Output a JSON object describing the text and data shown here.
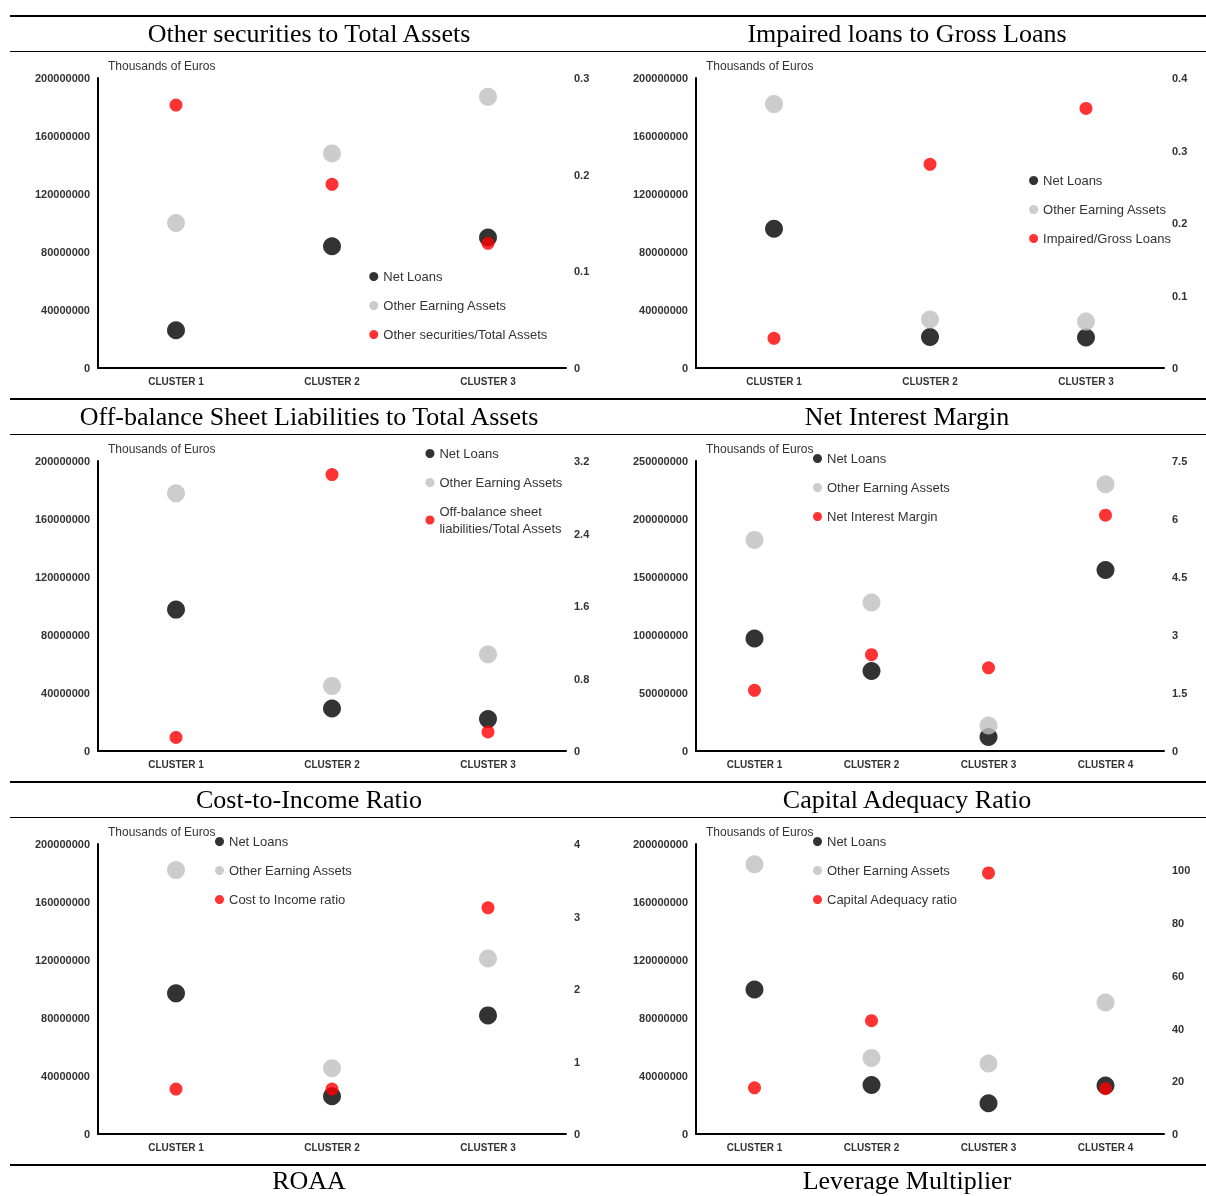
{
  "chart_data": [
    {
      "type": "scatter",
      "title": "Other securities to Total Assets",
      "ylabel": "Thousands of Euros",
      "categories": [
        "CLUSTER 1",
        "CLUSTER 2",
        "CLUSTER 3"
      ],
      "ylim": [
        0,
        200000000
      ],
      "yticks": [
        0,
        40000000,
        80000000,
        120000000,
        160000000,
        200000000
      ],
      "y2lim": [
        0,
        0.3
      ],
      "y2ticks": [
        0,
        0.1,
        0.2,
        0.3
      ],
      "grid": false,
      "legend": "bottom right",
      "marker": "circle",
      "series": [
        {
          "name": "Net Loans",
          "color": "#000000",
          "values": [
            26000000,
            84000000,
            90000000
          ]
        },
        {
          "name": "Other Earning Assets",
          "color": "#bfbfbf",
          "values": [
            100000000,
            148000000,
            187000000
          ]
        },
        {
          "name": "Other securities/Total Assets",
          "color": "#ff0000",
          "axis": "y2",
          "values": [
            0.272,
            0.19,
            0.129
          ]
        }
      ]
    },
    {
      "type": "scatter",
      "title": "Impaired loans to Gross Loans",
      "ylabel": "Thousands of Euros",
      "categories": [
        "CLUSTER 1",
        "CLUSTER 2",
        "CLUSTER 3"
      ],
      "ylim": [
        0,
        200000000
      ],
      "yticks": [
        0,
        40000000,
        80000000,
        120000000,
        160000000,
        200000000
      ],
      "y2lim": [
        0,
        0.4
      ],
      "y2ticks": [
        0,
        0.1,
        0.2,
        0.3,
        0.4
      ],
      "grid": false,
      "legend": "right",
      "marker": "circle",
      "series": [
        {
          "name": "Net Loans",
          "color": "#000000",
          "values": [
            96000000,
            21400000,
            21000000
          ]
        },
        {
          "name": "Other Earning Assets",
          "color": "#bfbfbf",
          "values": [
            182000000,
            33500000,
            32000000
          ]
        },
        {
          "name": "Impaired/Gross Loans",
          "color": "#ff0000",
          "axis": "y2",
          "values": [
            0.041,
            0.281,
            0.358
          ]
        }
      ]
    },
    {
      "type": "scatter",
      "title": "Off-balance Sheet Liabilities to Total Assets",
      "ylabel": "Thousands of Euros",
      "categories": [
        "CLUSTER 1",
        "CLUSTER 2",
        "CLUSTER 3"
      ],
      "ylim": [
        0,
        200000000
      ],
      "yticks": [
        0,
        40000000,
        80000000,
        120000000,
        160000000,
        200000000
      ],
      "y2lim": [
        0,
        3.2
      ],
      "y2ticks": [
        0,
        0.8,
        1.6,
        2.4,
        3.2
      ],
      "grid": false,
      "legend": "top right",
      "marker": "circle",
      "series": [
        {
          "name": "Net Loans",
          "color": "#000000",
          "values": [
            97500000,
            29300000,
            22000000
          ]
        },
        {
          "name": "Other Earning Assets",
          "color": "#bfbfbf",
          "values": [
            177700000,
            44900000,
            66700000
          ]
        },
        {
          "name": "Off-balance sheet\nliabilities/Total Assets",
          "color": "#ff0000",
          "axis": "y2",
          "values": [
            0.15,
            3.05,
            0.21
          ]
        }
      ]
    },
    {
      "type": "scatter",
      "title": "Net Interest Margin",
      "ylabel": "Thousands of Euros",
      "categories": [
        "CLUSTER 1",
        "CLUSTER 2",
        "CLUSTER 3",
        "CLUSTER 4"
      ],
      "ylim": [
        0,
        250000000
      ],
      "yticks": [
        0,
        50000000,
        100000000,
        150000000,
        200000000,
        250000000
      ],
      "y2lim": [
        0,
        7.5
      ],
      "y2ticks": [
        0,
        1.5,
        3,
        4.5,
        6,
        7.5
      ],
      "grid": false,
      "legend": "top",
      "marker": "circle",
      "series": [
        {
          "name": "Net Loans",
          "color": "#000000",
          "values": [
            97000000,
            69000000,
            12000000,
            156000000
          ]
        },
        {
          "name": "Other Earning Assets",
          "color": "#bfbfbf",
          "values": [
            182000000,
            128000000,
            22000000,
            230000000
          ]
        },
        {
          "name": "Net Interest Margin",
          "color": "#ff0000",
          "axis": "y2",
          "values": [
            1.57,
            2.49,
            2.15,
            6.1
          ]
        }
      ]
    },
    {
      "type": "scatter",
      "title": "Cost-to-Income Ratio",
      "ylabel": "Thousands of Euros",
      "categories": [
        "CLUSTER 1",
        "CLUSTER 2",
        "CLUSTER 3"
      ],
      "ylim": [
        0,
        200000000
      ],
      "yticks": [
        0,
        40000000,
        80000000,
        120000000,
        160000000,
        200000000
      ],
      "y2lim": [
        0,
        4
      ],
      "y2ticks": [
        0,
        1,
        2,
        3,
        4
      ],
      "grid": false,
      "legend": "top",
      "marker": "circle",
      "series": [
        {
          "name": "Net Loans",
          "color": "#000000",
          "values": [
            97000000,
            26000000,
            81800000
          ]
        },
        {
          "name": "Other Earning Assets",
          "color": "#bfbfbf",
          "values": [
            182000000,
            45300000,
            121000000
          ]
        },
        {
          "name": "Cost to Income ratio",
          "color": "#ff0000",
          "axis": "y2",
          "values": [
            0.62,
            0.62,
            3.12
          ]
        }
      ]
    },
    {
      "type": "scatter",
      "title": "Capital Adequacy Ratio",
      "ylabel": "Thousands of Euros",
      "categories": [
        "CLUSTER 1",
        "CLUSTER 2",
        "CLUSTER 3",
        "CLUSTER 4"
      ],
      "ylim": [
        0,
        200000000
      ],
      "yticks": [
        0,
        40000000,
        80000000,
        120000000,
        160000000,
        200000000
      ],
      "y2lim": [
        0,
        110
      ],
      "y2ticks": [
        0,
        20,
        40,
        60,
        80,
        100
      ],
      "grid": false,
      "legend": "top",
      "marker": "circle",
      "series": [
        {
          "name": "Net Loans",
          "color": "#000000",
          "values": [
            99700000,
            33800000,
            21200000,
            33500000
          ]
        },
        {
          "name": "Other Earning Assets",
          "color": "#bfbfbf",
          "values": [
            186000000,
            52400000,
            48600000,
            90700000
          ]
        },
        {
          "name": "Capital Adequacy ratio",
          "color": "#ff0000",
          "axis": "y2",
          "values": [
            17.5,
            43,
            99,
            17.2
          ]
        }
      ]
    },
    {
      "type": "other",
      "title": "ROAA"
    },
    {
      "type": "other",
      "title": "Leverage Multiplier"
    }
  ]
}
